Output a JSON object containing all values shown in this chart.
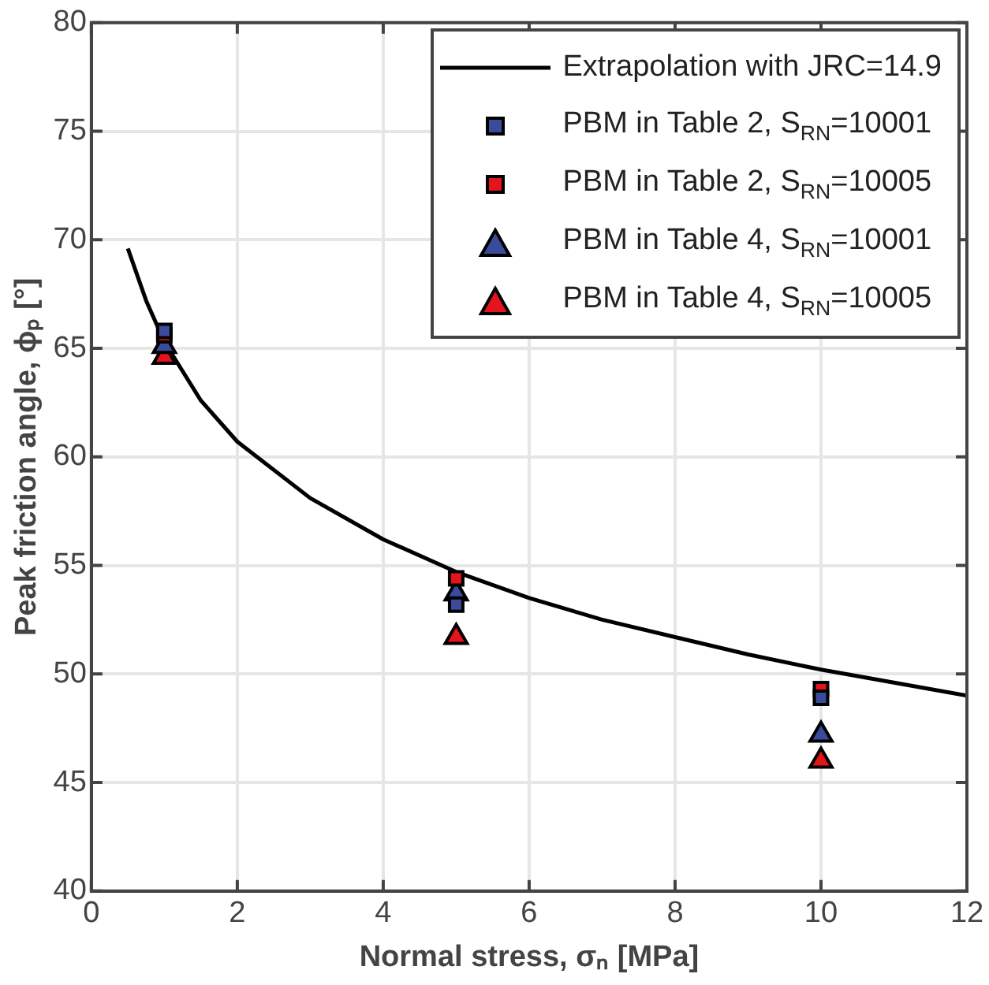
{
  "chart_data": {
    "type": "scatter",
    "xlabel": "Normal stress, σₙ [MPa]",
    "ylabel": "Peak friction angle, ϕₚ [°]",
    "xlim": [
      0,
      12
    ],
    "xticks": [
      0,
      2,
      4,
      6,
      8,
      10,
      12
    ],
    "ylim": [
      40,
      80
    ],
    "yticks": [
      40,
      45,
      50,
      55,
      60,
      65,
      70,
      75,
      80
    ],
    "grid": true,
    "legend": "top right",
    "series": [
      {
        "type": "line",
        "name": "Extrapolation with  JRC=14.9",
        "color": "#000000",
        "marker": "none",
        "line_style": "solid",
        "x": [
          0.5,
          0.75,
          1,
          1.5,
          2,
          3,
          4,
          5,
          6,
          7,
          8,
          9,
          10,
          11,
          12
        ],
        "values": [
          69.6,
          67.2,
          65.3,
          62.6,
          60.7,
          58.1,
          56.2,
          54.7,
          53.5,
          52.5,
          51.7,
          50.9,
          50.2,
          49.6,
          49.0
        ]
      },
      {
        "name": "PBM in Table 2,  S$_{RN}$=10001",
        "color": "#3b4b9b",
        "marker": "square",
        "x": [
          1,
          5,
          10
        ],
        "values": [
          65.8,
          53.2,
          48.9
        ]
      },
      {
        "name": "PBM in Table 2,  S$_{RN}$=10005",
        "color": "#e3141b",
        "marker": "square",
        "x": [
          1,
          5,
          10
        ],
        "values": [
          65.6,
          54.4,
          49.3
        ]
      },
      {
        "name": "PBM in Table 4,  S$_{RN}$=10001",
        "color": "#3b4b9b",
        "marker": "triangle",
        "x": [
          1,
          5,
          10
        ],
        "values": [
          65.1,
          53.7,
          47.2
        ]
      },
      {
        "name": "PBM in Table 4,  S$_{RN}$=10005",
        "color": "#e3141b",
        "marker": "triangle",
        "x": [
          1,
          5,
          10
        ],
        "values": [
          64.6,
          51.7,
          46.0
        ]
      }
    ]
  }
}
